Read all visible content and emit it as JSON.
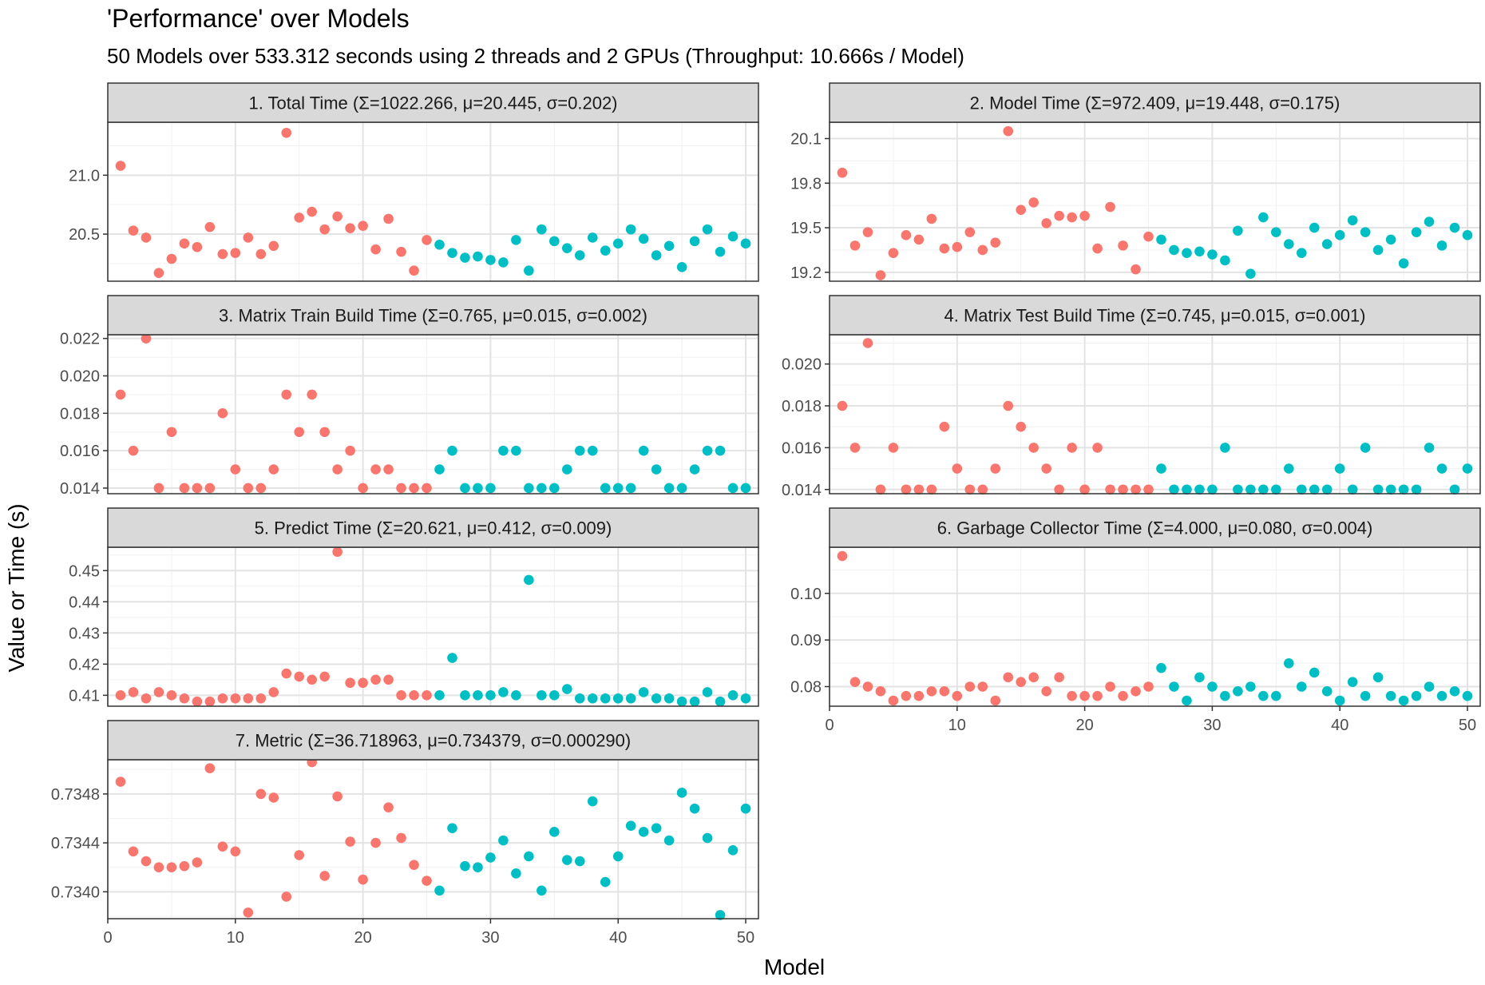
{
  "chart_data": {
    "type": "scatter",
    "title": "'Performance' over Models",
    "subtitle": "50 Models over 533.312 seconds using 2 threads and 2 GPUs (Throughput: 10.666s / Model)",
    "xlabel": "Model",
    "ylabel": "Value or Time (s)",
    "xlim": [
      0,
      51
    ],
    "x_ticks": [
      0,
      10,
      20,
      30,
      40,
      50
    ],
    "grid": true,
    "legend": "none",
    "colors": {
      "group1": "#F8766D",
      "group2": "#00BFC4"
    },
    "group_split_after_model": 25,
    "x": [
      1,
      2,
      3,
      4,
      5,
      6,
      7,
      8,
      9,
      10,
      11,
      12,
      13,
      14,
      15,
      16,
      17,
      18,
      19,
      20,
      21,
      22,
      23,
      24,
      25,
      26,
      27,
      28,
      29,
      30,
      31,
      32,
      33,
      34,
      35,
      36,
      37,
      38,
      39,
      40,
      41,
      42,
      43,
      44,
      45,
      46,
      47,
      48,
      49,
      50
    ],
    "panels": [
      {
        "strip": "1. Total Time (Σ=1022.266, μ=20.445, σ=0.202)",
        "ylim": [
          20.1,
          21.45
        ],
        "y_ticks": [
          20.5,
          21.0
        ],
        "y_tick_labels": [
          "20.5",
          "21.0"
        ],
        "values": [
          21.08,
          20.53,
          20.47,
          20.17,
          20.29,
          20.42,
          20.39,
          20.56,
          20.33,
          20.34,
          20.47,
          20.33,
          20.4,
          21.36,
          20.64,
          20.69,
          20.54,
          20.65,
          20.55,
          20.57,
          20.37,
          20.63,
          20.35,
          20.19,
          20.45,
          20.41,
          20.34,
          20.3,
          20.31,
          20.28,
          20.26,
          20.45,
          20.19,
          20.54,
          20.44,
          20.38,
          20.32,
          20.47,
          20.36,
          20.42,
          20.54,
          20.46,
          20.32,
          20.4,
          20.22,
          20.44,
          20.54,
          20.35,
          20.48,
          20.42
        ]
      },
      {
        "strip": "2. Model Time (Σ=972.409, μ=19.448, σ=0.175)",
        "ylim": [
          19.14,
          20.21
        ],
        "y_ticks": [
          19.2,
          19.5,
          19.8,
          20.1
        ],
        "y_tick_labels": [
          "19.2",
          "19.5",
          "19.8",
          "20.1"
        ],
        "values": [
          19.87,
          19.38,
          19.47,
          19.18,
          19.33,
          19.45,
          19.42,
          19.56,
          19.36,
          19.37,
          19.47,
          19.35,
          19.4,
          20.15,
          19.62,
          19.67,
          19.53,
          19.58,
          19.57,
          19.58,
          19.36,
          19.64,
          19.38,
          19.22,
          19.44,
          19.42,
          19.35,
          19.33,
          19.34,
          19.32,
          19.28,
          19.48,
          19.19,
          19.57,
          19.47,
          19.39,
          19.33,
          19.5,
          19.39,
          19.45,
          19.55,
          19.47,
          19.35,
          19.42,
          19.26,
          19.47,
          19.54,
          19.38,
          19.5,
          19.45
        ]
      },
      {
        "strip": "3. Matrix Train Build Time (Σ=0.765, μ=0.015, σ=0.002)",
        "ylim": [
          0.0137,
          0.0222
        ],
        "y_ticks": [
          0.014,
          0.016,
          0.018,
          0.02,
          0.022
        ],
        "y_tick_labels": [
          "0.014",
          "0.016",
          "0.018",
          "0.020",
          "0.022"
        ],
        "values": [
          0.019,
          0.016,
          0.022,
          0.014,
          0.017,
          0.014,
          0.014,
          0.014,
          0.018,
          0.015,
          0.014,
          0.014,
          0.015,
          0.019,
          0.017,
          0.019,
          0.017,
          0.015,
          0.016,
          0.014,
          0.015,
          0.015,
          0.014,
          0.014,
          0.014,
          0.015,
          0.016,
          0.014,
          0.014,
          0.014,
          0.016,
          0.016,
          0.014,
          0.014,
          0.014,
          0.015,
          0.016,
          0.016,
          0.014,
          0.014,
          0.014,
          0.016,
          0.015,
          0.014,
          0.014,
          0.015,
          0.016,
          0.016,
          0.014,
          0.014
        ]
      },
      {
        "strip": "4. Matrix Test Build Time (Σ=0.745, μ=0.015, σ=0.001)",
        "ylim": [
          0.0138,
          0.0214
        ],
        "y_ticks": [
          0.014,
          0.016,
          0.018,
          0.02
        ],
        "y_tick_labels": [
          "0.014",
          "0.016",
          "0.018",
          "0.020"
        ],
        "values": [
          0.018,
          0.016,
          0.021,
          0.014,
          0.016,
          0.014,
          0.014,
          0.014,
          0.017,
          0.015,
          0.014,
          0.014,
          0.015,
          0.018,
          0.017,
          0.016,
          0.015,
          0.014,
          0.016,
          0.014,
          0.016,
          0.014,
          0.014,
          0.014,
          0.014,
          0.015,
          0.014,
          0.014,
          0.014,
          0.014,
          0.016,
          0.014,
          0.014,
          0.014,
          0.014,
          0.015,
          0.014,
          0.014,
          0.014,
          0.015,
          0.014,
          0.016,
          0.014,
          0.014,
          0.014,
          0.014,
          0.016,
          0.015,
          0.014,
          0.015
        ]
      },
      {
        "strip": "5. Predict Time (Σ=20.621, μ=0.412, σ=0.009)",
        "ylim": [
          0.4065,
          0.4575
        ],
        "y_ticks": [
          0.41,
          0.42,
          0.43,
          0.44,
          0.45
        ],
        "y_tick_labels": [
          "0.41",
          "0.42",
          "0.43",
          "0.44",
          "0.45"
        ],
        "values": [
          0.41,
          0.411,
          0.409,
          0.411,
          0.41,
          0.409,
          0.408,
          0.408,
          0.409,
          0.409,
          0.409,
          0.409,
          0.411,
          0.417,
          0.416,
          0.415,
          0.416,
          0.456,
          0.414,
          0.414,
          0.415,
          0.415,
          0.41,
          0.41,
          0.41,
          0.41,
          0.422,
          0.41,
          0.41,
          0.41,
          0.411,
          0.41,
          0.447,
          0.41,
          0.41,
          0.412,
          0.409,
          0.409,
          0.409,
          0.409,
          0.409,
          0.411,
          0.409,
          0.409,
          0.408,
          0.408,
          0.411,
          0.408,
          0.41,
          0.409
        ]
      },
      {
        "strip": "6. Garbage Collector Time (Σ=4.000, μ=0.080, σ=0.004)",
        "ylim": [
          0.0758,
          0.1099
        ],
        "y_ticks": [
          0.08,
          0.09,
          0.1
        ],
        "y_tick_labels": [
          "0.08",
          "0.09",
          "0.10"
        ],
        "values": [
          0.108,
          0.081,
          0.08,
          0.079,
          0.077,
          0.078,
          0.078,
          0.079,
          0.079,
          0.078,
          0.08,
          0.08,
          0.077,
          0.082,
          0.081,
          0.082,
          0.079,
          0.082,
          0.078,
          0.078,
          0.078,
          0.08,
          0.078,
          0.079,
          0.08,
          0.084,
          0.08,
          0.077,
          0.082,
          0.08,
          0.078,
          0.079,
          0.08,
          0.078,
          0.078,
          0.085,
          0.08,
          0.083,
          0.079,
          0.077,
          0.081,
          0.078,
          0.082,
          0.078,
          0.077,
          0.078,
          0.08,
          0.078,
          0.079,
          0.078
        ]
      },
      {
        "strip": "7. Metric (Σ=36.718963, μ=0.734379, σ=0.000290)",
        "ylim": [
          0.73378,
          0.73508
        ],
        "y_ticks": [
          0.734,
          0.7344,
          0.7348
        ],
        "y_tick_labels": [
          "0.7340",
          "0.7344",
          "0.7348"
        ],
        "values": [
          0.7349,
          0.73433,
          0.73425,
          0.7342,
          0.7342,
          0.73421,
          0.73424,
          0.73501,
          0.73437,
          0.73433,
          0.73383,
          0.7348,
          0.73477,
          0.73396,
          0.7343,
          0.73506,
          0.73413,
          0.73478,
          0.73441,
          0.7341,
          0.7344,
          0.73469,
          0.73444,
          0.73422,
          0.73409,
          0.73401,
          0.73452,
          0.73421,
          0.7342,
          0.73428,
          0.73442,
          0.73415,
          0.73429,
          0.73401,
          0.73449,
          0.73426,
          0.73425,
          0.73474,
          0.73408,
          0.73429,
          0.73454,
          0.73449,
          0.73452,
          0.73442,
          0.73481,
          0.73468,
          0.73444,
          0.73381,
          0.73434,
          0.73468
        ]
      }
    ]
  }
}
